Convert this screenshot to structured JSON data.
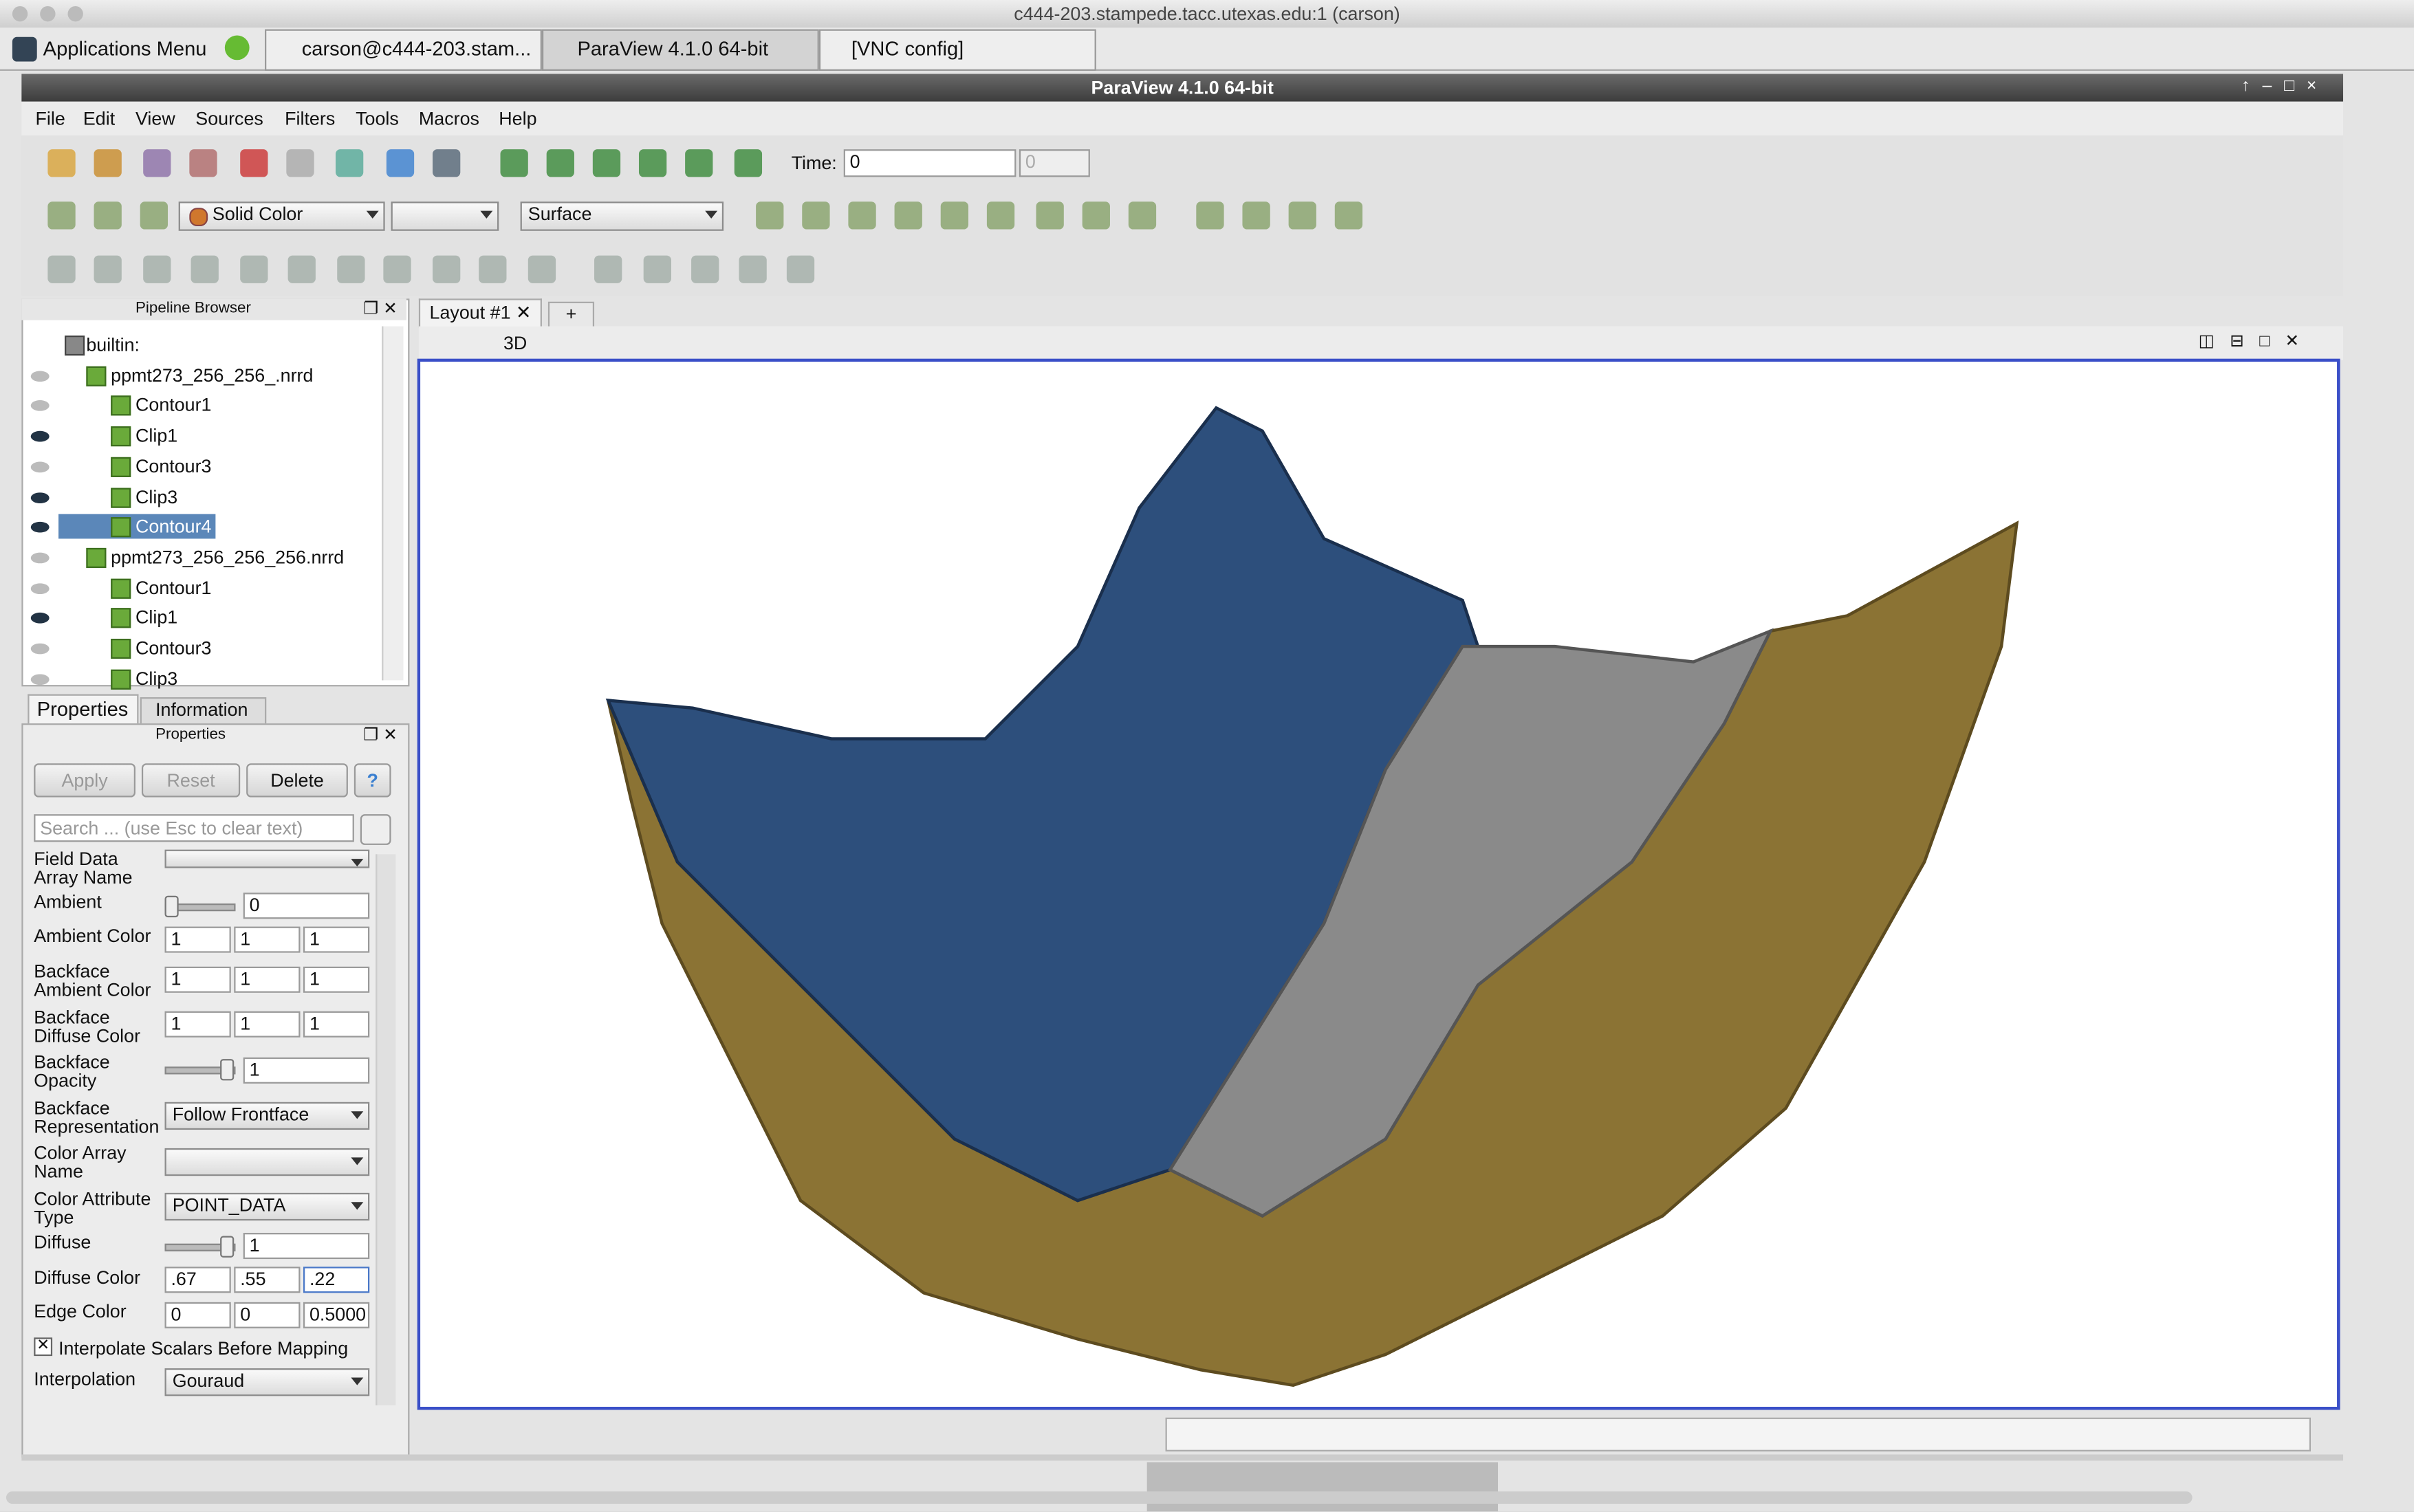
{
  "window": {
    "title": "c444-203.stampede.tacc.utexas.edu:1 (carson)"
  },
  "taskbar": {
    "items": [
      "Applications Menu",
      "carson@c444-203.stam...",
      "ParaView 4.1.0 64-bit",
      "[VNC config]"
    ]
  },
  "app": {
    "title": "ParaView 4.1.0 64-bit",
    "menu": [
      "File",
      "Edit",
      "View",
      "Sources",
      "Filters",
      "Tools",
      "Macros",
      "Help"
    ]
  },
  "toolbar": {
    "time_label": "Time:",
    "time_value": "0",
    "time_index": "0",
    "color_by": "Solid Color",
    "representation": "Surface"
  },
  "pipeline_browser": {
    "title": "Pipeline Browser",
    "items": [
      "builtin:",
      "ppmt273_256_256_.nrrd",
      "Contour1",
      "Clip1",
      "Contour3",
      "Clip3",
      "Contour4",
      "ppmt273_256_256_256.nrrd",
      "Contour1",
      "Clip1",
      "Contour3",
      "Clip3"
    ]
  },
  "properties_panel": {
    "tabs": [
      "Properties",
      "Information"
    ],
    "title": "Properties",
    "buttons": [
      "Apply",
      "Reset",
      "Delete",
      "?"
    ],
    "search_placeholder": "Search ... (use Esc to clear text)",
    "rows": [
      {
        "label": "Field Data Array Name"
      },
      {
        "label": "Ambient",
        "values": [
          "0"
        ]
      },
      {
        "label": "Ambient Color",
        "values": [
          "1",
          "1",
          "1"
        ]
      },
      {
        "label": "Backface Ambient Color",
        "values": [
          "1",
          "1",
          "1"
        ]
      },
      {
        "label": "Backface Diffuse Color",
        "values": [
          "1",
          "1",
          "1"
        ]
      },
      {
        "label": "Backface Opacity",
        "values": [
          "1"
        ]
      },
      {
        "label": "Backface Representation",
        "values": [
          "Follow Frontface"
        ]
      },
      {
        "label": "Color Array Name"
      },
      {
        "label": "Color Attribute Type",
        "values": [
          "POINT_DATA"
        ]
      },
      {
        "label": "Diffuse",
        "values": [
          "1"
        ]
      },
      {
        "label": "Diffuse Color",
        "values": [
          ".67",
          ".55",
          ".22"
        ]
      },
      {
        "label": "Edge Color",
        "values": [
          "0",
          "0",
          "0.5000"
        ]
      },
      {
        "label": "Interpolate Scalars Before Mapping"
      },
      {
        "label": "Interpolation",
        "values": [
          "Gouraud"
        ]
      }
    ]
  },
  "layout": {
    "tab": "Layout #1",
    "add": "+",
    "view_mode": "3D"
  }
}
